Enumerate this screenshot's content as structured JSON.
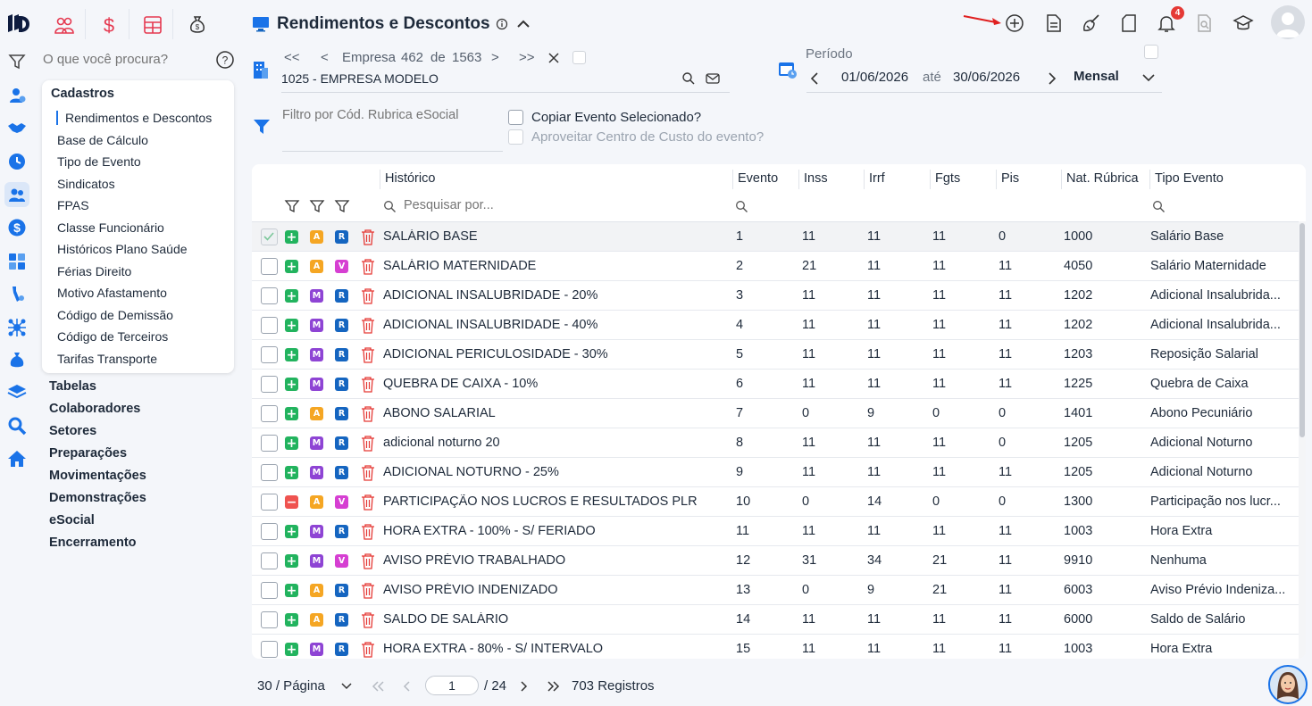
{
  "search": {
    "placeholder": "O que você procura?"
  },
  "header": {
    "title": "Rendimentos e Descontos"
  },
  "menu": {
    "section_title": "Cadastros",
    "items": [
      "Rendimentos e Descontos",
      "Base de Cálculo",
      "Tipo de Evento",
      "Sindicatos",
      "FPAS",
      "Classe Funcionário",
      "Históricos Plano Saúde",
      "Férias Direito",
      "Motivo Afastamento",
      "Código de Demissão",
      "Código de Terceiros",
      "Tarifas Transporte"
    ],
    "main_items": [
      "Tabelas",
      "Colaboradores",
      "Setores",
      "Preparações",
      "Movimentações",
      "Demonstrações",
      "eSocial",
      "Encerramento"
    ]
  },
  "empresa": {
    "first": "<<",
    "prev": "<",
    "label": "Empresa",
    "current": "462",
    "of_label": "de",
    "total": "1563",
    "next": ">",
    "last": ">>",
    "value": "1025 - EMPRESA MODELO"
  },
  "periodo": {
    "label": "Período",
    "start": "01/06/2026",
    "until": "até",
    "end": "30/06/2026",
    "mode": "Mensal"
  },
  "filtro": {
    "placeholder": "Filtro por Cód. Rubrica eSocial"
  },
  "options": {
    "copiar": "Copiar Evento Selecionado?",
    "aproveitar": "Aproveitar Centro de Custo do evento?"
  },
  "table": {
    "columns": [
      "Histórico",
      "Evento",
      "Inss",
      "Irrf",
      "Fgts",
      "Pis",
      "Nat. Rúbrica",
      "Tipo Evento"
    ],
    "search_placeholder": "Pesquisar por...",
    "rows": [
      {
        "status": "+",
        "b1": "A",
        "b2": "R",
        "historico": "SALÁRIO BASE",
        "evento": "1",
        "inss": "11",
        "irrf": "11",
        "fgts": "11",
        "pis": "0",
        "nat": "1000",
        "tipo": "Salário Base"
      },
      {
        "status": "+",
        "b1": "A",
        "b2": "V",
        "historico": "SALÁRIO MATERNIDADE",
        "evento": "2",
        "inss": "21",
        "irrf": "11",
        "fgts": "11",
        "pis": "11",
        "nat": "4050",
        "tipo": "Salário Maternidade"
      },
      {
        "status": "+",
        "b1": "M",
        "b2": "R",
        "historico": "ADICIONAL INSALUBRIDADE - 20%",
        "evento": "3",
        "inss": "11",
        "irrf": "11",
        "fgts": "11",
        "pis": "11",
        "nat": "1202",
        "tipo": "Adicional Insalubrida..."
      },
      {
        "status": "+",
        "b1": "M",
        "b2": "R",
        "historico": "ADICIONAL INSALUBRIDADE - 40%",
        "evento": "4",
        "inss": "11",
        "irrf": "11",
        "fgts": "11",
        "pis": "11",
        "nat": "1202",
        "tipo": "Adicional Insalubrida..."
      },
      {
        "status": "+",
        "b1": "M",
        "b2": "R",
        "historico": "ADICIONAL PERICULOSIDADE - 30%",
        "evento": "5",
        "inss": "11",
        "irrf": "11",
        "fgts": "11",
        "pis": "11",
        "nat": "1203",
        "tipo": "Reposição Salarial"
      },
      {
        "status": "+",
        "b1": "M",
        "b2": "R",
        "historico": "QUEBRA DE CAIXA - 10%",
        "evento": "6",
        "inss": "11",
        "irrf": "11",
        "fgts": "11",
        "pis": "11",
        "nat": "1225",
        "tipo": "Quebra de Caixa"
      },
      {
        "status": "+",
        "b1": "A",
        "b2": "R",
        "historico": "ABONO SALARIAL",
        "evento": "7",
        "inss": "0",
        "irrf": "9",
        "fgts": "0",
        "pis": "0",
        "nat": "1401",
        "tipo": "Abono Pecuniário"
      },
      {
        "status": "+",
        "b1": "M",
        "b2": "R",
        "historico": "adicional noturno 20",
        "evento": "8",
        "inss": "11",
        "irrf": "11",
        "fgts": "11",
        "pis": "0",
        "nat": "1205",
        "tipo": "Adicional Noturno"
      },
      {
        "status": "+",
        "b1": "M",
        "b2": "R",
        "historico": "ADICIONAL NOTURNO - 25%",
        "evento": "9",
        "inss": "11",
        "irrf": "11",
        "fgts": "11",
        "pis": "11",
        "nat": "1205",
        "tipo": "Adicional Noturno"
      },
      {
        "status": "-",
        "b1": "A",
        "b2": "V",
        "historico": "PARTICIPAÇÃO NOS LUCROS E RESULTADOS PLR",
        "evento": "10",
        "inss": "0",
        "irrf": "14",
        "fgts": "0",
        "pis": "0",
        "nat": "1300",
        "tipo": "Participação nos lucr..."
      },
      {
        "status": "+",
        "b1": "M",
        "b2": "R",
        "historico": "HORA EXTRA - 100% - S/ FERIADO",
        "evento": "11",
        "inss": "11",
        "irrf": "11",
        "fgts": "11",
        "pis": "11",
        "nat": "1003",
        "tipo": "Hora Extra"
      },
      {
        "status": "+",
        "b1": "M",
        "b2": "V",
        "historico": "AVISO PRÉVIO TRABALHADO",
        "evento": "12",
        "inss": "31",
        "irrf": "34",
        "fgts": "21",
        "pis": "11",
        "nat": "9910",
        "tipo": "Nenhuma"
      },
      {
        "status": "+",
        "b1": "A",
        "b2": "R",
        "historico": "AVISO PRÉVIO INDENIZADO",
        "evento": "13",
        "inss": "0",
        "irrf": "9",
        "fgts": "21",
        "pis": "11",
        "nat": "6003",
        "tipo": "Aviso Prévio Indeniza..."
      },
      {
        "status": "+",
        "b1": "A",
        "b2": "R",
        "historico": "SALDO DE SALÁRIO",
        "evento": "14",
        "inss": "11",
        "irrf": "11",
        "fgts": "11",
        "pis": "11",
        "nat": "6000",
        "tipo": "Saldo de Salário"
      },
      {
        "status": "+",
        "b1": "M",
        "b2": "R",
        "historico": "HORA EXTRA - 80% - S/ INTERVALO",
        "evento": "15",
        "inss": "11",
        "irrf": "11",
        "fgts": "11",
        "pis": "11",
        "nat": "1003",
        "tipo": "Hora Extra"
      }
    ]
  },
  "pager": {
    "per_page": "30 / Página",
    "page": "1",
    "total_pages": "/ 24",
    "records": "703 Registros"
  },
  "notifications": {
    "count": "4"
  },
  "colors": {
    "accent": "#1a73e8",
    "badge_A": "#f5a623",
    "badge_M": "#8e44d4",
    "badge_V": "#d63fd2",
    "badge_R": "#1565c0",
    "add_green": "#22b35e",
    "remove_red": "#ef5350",
    "trash_red": "#e53935"
  }
}
